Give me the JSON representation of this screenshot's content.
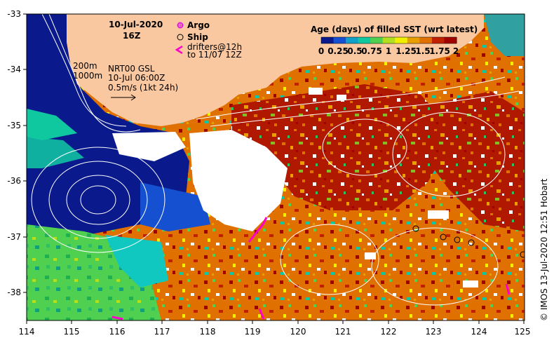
{
  "map": {
    "date": "10-Jul-2020",
    "hour": "16Z",
    "legend": {
      "argo": "Argo",
      "ship": "Ship",
      "drifters_line1": "drifters@12h",
      "drifters_line2": "to 11/07 12Z",
      "argo_color": "#e020e0",
      "drifter_color": "#ff00c8"
    },
    "contours": {
      "depth1": "200m",
      "depth2": "1000m"
    },
    "product": {
      "name": "NRT00 GSL",
      "time": "10-Jul 06:00Z",
      "scale": "0.5m/s (1kt 24h)"
    },
    "colorbar": {
      "title": "Age (days) of filled SST (wrt latest)",
      "ticks": [
        "0",
        "0.25",
        "0.5",
        "0.75",
        "1",
        "1.25",
        "1.5",
        "1.75",
        "2"
      ],
      "colors": [
        "#0a1a8c",
        "#1450d0",
        "#10a0c8",
        "#10c8a0",
        "#50d050",
        "#b0e020",
        "#f0f000",
        "#e8a000",
        "#e07000",
        "#c02000",
        "#a00000"
      ]
    },
    "axes": {
      "lon_ticks": [
        "114",
        "115",
        "116",
        "117",
        "118",
        "119",
        "120",
        "121",
        "122",
        "123",
        "124",
        "125"
      ],
      "lat_ticks": [
        "-33",
        "-34",
        "-35",
        "-36",
        "-37",
        "-38"
      ]
    },
    "credit": "© IMOS 13-Jul-2020 12:51 Hobart",
    "colors": {
      "land": "#fac8a0",
      "deep_ocean": "#0a1a8c",
      "cloud": "#ffffff",
      "contour": "#ffffff"
    }
  }
}
